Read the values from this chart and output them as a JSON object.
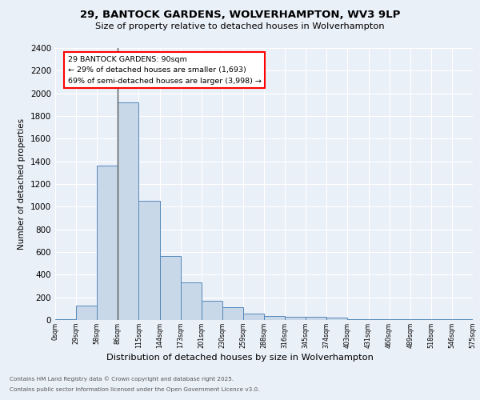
{
  "title1": "29, BANTOCK GARDENS, WOLVERHAMPTON, WV3 9LP",
  "title2": "Size of property relative to detached houses in Wolverhampton",
  "xlabel": "Distribution of detached houses by size in Wolverhampton",
  "ylabel": "Number of detached properties",
  "footer1": "Contains HM Land Registry data © Crown copyright and database right 2025.",
  "footer2": "Contains public sector information licensed under the Open Government Licence v3.0.",
  "annotation_line1": "29 BANTOCK GARDENS: 90sqm",
  "annotation_line2": "← 29% of detached houses are smaller (1,693)",
  "annotation_line3": "69% of semi-detached houses are larger (3,998) →",
  "bar_values": [
    10,
    125,
    1360,
    1920,
    1055,
    565,
    335,
    170,
    110,
    60,
    35,
    30,
    25,
    20,
    5,
    5,
    5,
    5,
    5,
    10
  ],
  "bar_color": "#c8d8e8",
  "bar_edge_color": "#5588bb",
  "ylim": [
    0,
    2400
  ],
  "yticks": [
    0,
    200,
    400,
    600,
    800,
    1000,
    1200,
    1400,
    1600,
    1800,
    2000,
    2200,
    2400
  ],
  "xtick_labels": [
    "0sqm",
    "29sqm",
    "58sqm",
    "86sqm",
    "115sqm",
    "144sqm",
    "173sqm",
    "201sqm",
    "230sqm",
    "259sqm",
    "288sqm",
    "316sqm",
    "345sqm",
    "374sqm",
    "403sqm",
    "431sqm",
    "460sqm",
    "489sqm",
    "518sqm",
    "546sqm",
    "575sqm"
  ],
  "background_color": "#eaf0f8",
  "plot_bg_color": "#eaf0f8",
  "grid_color": "#ffffff",
  "vline_x": 3.0
}
